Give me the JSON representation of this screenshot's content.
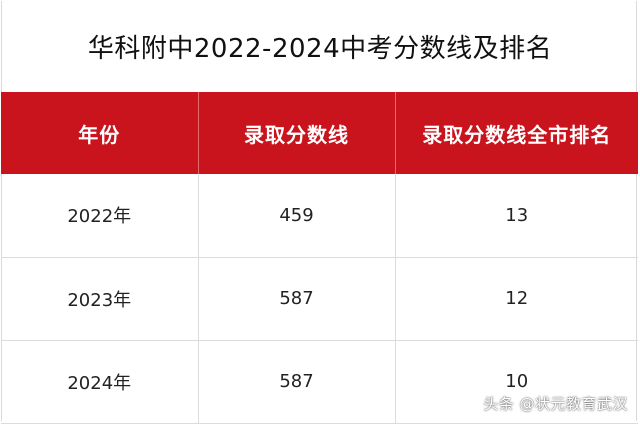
{
  "title": "华科附中2022-2024中考分数线及排名",
  "table": {
    "headers": [
      "年份",
      "录取分数线",
      "录取分数线全市排名"
    ],
    "rows": [
      [
        "2022年",
        "459",
        "13"
      ],
      [
        "2023年",
        "587",
        "12"
      ],
      [
        "2024年",
        "587",
        "10"
      ]
    ]
  },
  "watermark": "头条 @状元教育武汉",
  "colors": {
    "header_bg": "#c9141d",
    "header_text": "#ffffff"
  }
}
